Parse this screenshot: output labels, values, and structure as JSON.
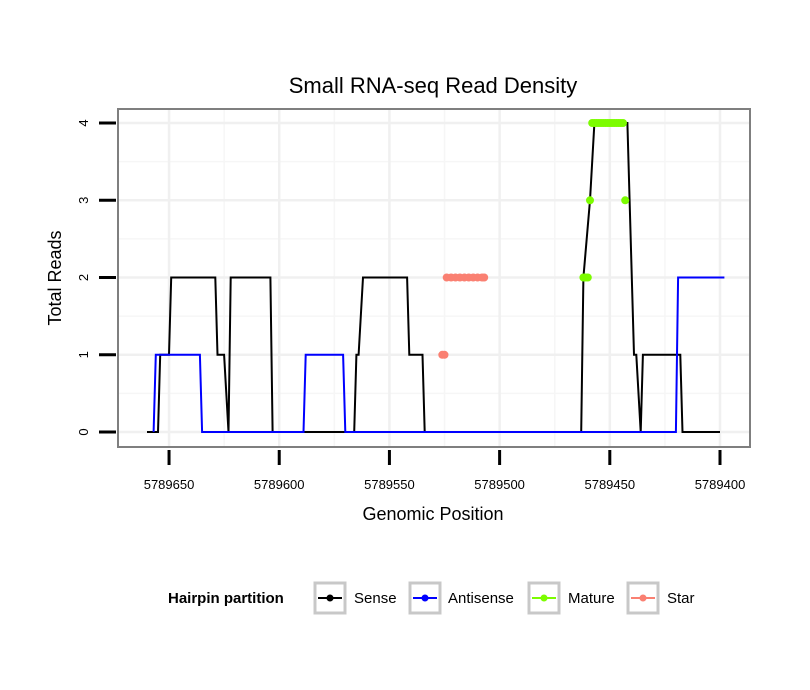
{
  "chart_data": {
    "type": "line",
    "title": "Small RNA-seq Read Density",
    "xlabel": "Genomic Position",
    "ylabel": "Total Reads",
    "x_reversed": true,
    "xlim": [
      5789660,
      5789400
    ],
    "ylim": [
      0,
      4
    ],
    "x_ticks": [
      5789650,
      5789600,
      5789550,
      5789500,
      5789450,
      5789400
    ],
    "x_tick_labels": [
      "5789650",
      "5789600",
      "5789550",
      "5789500",
      "5789450",
      "5789400"
    ],
    "y_ticks": [
      0,
      1,
      2,
      3,
      4
    ],
    "y_tick_labels": [
      "0",
      "1",
      "2",
      "3",
      "4"
    ],
    "grid": true,
    "legend": {
      "title": "Hairpin partition",
      "position": "bottom",
      "entries": [
        {
          "name": "Sense",
          "color": "#000000"
        },
        {
          "name": "Antisense",
          "color": "#0000ff"
        },
        {
          "name": "Mature",
          "color": "#7cfc00"
        },
        {
          "name": "Star",
          "color": "#fa8072"
        }
      ]
    },
    "series": [
      {
        "name": "Sense",
        "color": "#000000",
        "x": [
          5789660,
          5789655,
          5789654,
          5789650,
          5789649,
          5789629,
          5789628,
          5789625,
          5789623,
          5789622,
          5789604,
          5789603,
          5789585,
          5789584,
          5789566,
          5789565,
          5789564,
          5789562,
          5789561,
          5789542,
          5789541,
          5789535,
          5789534,
          5789503,
          5789502,
          5789463,
          5789462,
          5789459,
          5789457,
          5789456,
          5789442,
          5789441,
          5789439,
          5789438,
          5789436,
          5789435,
          5789418,
          5789417,
          5789401,
          5789400
        ],
        "values": [
          0,
          0,
          1,
          1,
          2,
          2,
          1,
          1,
          0,
          2,
          2,
          0,
          0,
          0,
          0,
          1,
          1,
          2,
          2,
          2,
          1,
          1,
          0,
          0,
          0,
          0,
          2,
          3,
          4,
          4,
          4,
          3,
          1,
          1,
          0,
          1,
          1,
          0,
          0,
          0
        ]
      },
      {
        "name": "Antisense",
        "color": "#0000ff",
        "x": [
          5789657,
          5789656,
          5789636,
          5789635,
          5789596,
          5789595,
          5789589,
          5789588,
          5789571,
          5789570,
          5789531,
          5789530,
          5789460,
          5789455,
          5789420,
          5789419,
          5789398
        ],
        "values": [
          0,
          1,
          1,
          0,
          0,
          0,
          0,
          1,
          1,
          0,
          0,
          0,
          0,
          0,
          0,
          2,
          2
        ]
      },
      {
        "name": "Mature",
        "color": "#7cfc00",
        "points": [
          [
            5789462,
            2
          ],
          [
            5789461,
            2
          ],
          [
            5789460,
            2
          ],
          [
            5789459,
            3
          ],
          [
            5789443,
            3
          ],
          [
            5789458,
            4
          ],
          [
            5789457,
            4
          ],
          [
            5789456,
            4
          ],
          [
            5789455,
            4
          ],
          [
            5789454,
            4
          ],
          [
            5789453,
            4
          ],
          [
            5789452,
            4
          ],
          [
            5789451,
            4
          ],
          [
            5789450,
            4
          ],
          [
            5789449,
            4
          ],
          [
            5789448,
            4
          ],
          [
            5789447,
            4
          ],
          [
            5789446,
            4
          ],
          [
            5789445,
            4
          ],
          [
            5789444,
            4
          ]
        ]
      },
      {
        "name": "Star",
        "color": "#fa8072",
        "points": [
          [
            5789526,
            1
          ],
          [
            5789525,
            1
          ],
          [
            5789524,
            2
          ],
          [
            5789522,
            2
          ],
          [
            5789520,
            2
          ],
          [
            5789518,
            2
          ],
          [
            5789516,
            2
          ],
          [
            5789514,
            2
          ],
          [
            5789512,
            2
          ],
          [
            5789510,
            2
          ],
          [
            5789508,
            2
          ],
          [
            5789507,
            2
          ]
        ]
      }
    ]
  }
}
